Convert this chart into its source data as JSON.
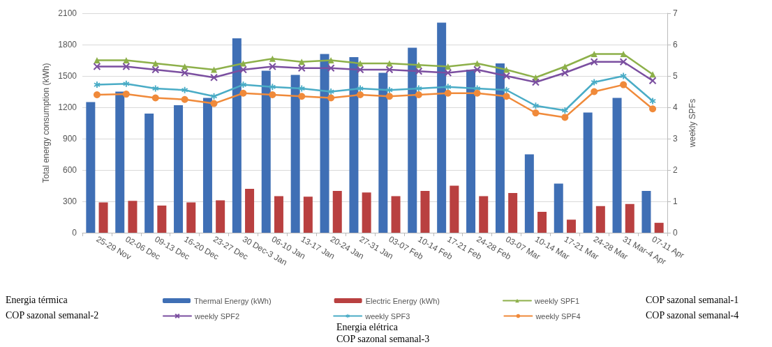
{
  "chart_data": {
    "type": "bar",
    "categories": [
      "25-29 Nov",
      "02-06 Dec",
      "09-13 Dec",
      "16-20 Dec",
      "23-27 Dec",
      "30 Dec-3 Jan",
      "06-10 Jan",
      "13-17 Jan",
      "20-24 Jan",
      "27-31 Jan",
      "03-07 Feb",
      "10-14 Feb",
      "17-21 Feb",
      "24-28 Feb",
      "03-07 Mar",
      "10-14 Mar",
      "17-21 Mar",
      "24-28 Mar",
      "31 Mar-4 Apr",
      "07-11 Apr"
    ],
    "series": [
      {
        "name": "Thermal Energy (kWh)",
        "color": "#3f6fb5",
        "values": [
          1250,
          1350,
          1140,
          1220,
          1290,
          1860,
          1550,
          1510,
          1710,
          1680,
          1530,
          1770,
          2010,
          1560,
          1620,
          750,
          470,
          1150,
          1290,
          400
        ]
      },
      {
        "name": "Electric Energy (kWh)",
        "color": "#b94040",
        "values": [
          290,
          305,
          260,
          290,
          310,
          420,
          350,
          345,
          400,
          385,
          350,
          400,
          450,
          350,
          380,
          200,
          125,
          255,
          275,
          95
        ]
      },
      {
        "name": "weekly SPF1",
        "type": "line",
        "axis": "y2",
        "marker": "triangle",
        "color": "#8db04a",
        "values": [
          5.5,
          5.5,
          5.4,
          5.3,
          5.2,
          5.4,
          5.55,
          5.45,
          5.5,
          5.4,
          5.4,
          5.35,
          5.3,
          5.4,
          5.2,
          4.95,
          5.3,
          5.7,
          5.7,
          5.05
        ]
      },
      {
        "name": "weekly SPF2",
        "type": "line",
        "axis": "y2",
        "marker": "cross",
        "color": "#7b4fa0",
        "values": [
          5.3,
          5.3,
          5.2,
          5.1,
          4.95,
          5.2,
          5.3,
          5.25,
          5.25,
          5.2,
          5.2,
          5.15,
          5.1,
          5.2,
          5.0,
          4.8,
          5.1,
          5.45,
          5.45,
          4.85
        ]
      },
      {
        "name": "weekly SPF3",
        "type": "line",
        "axis": "y2",
        "marker": "star",
        "color": "#4aacc6",
        "values": [
          4.72,
          4.75,
          4.6,
          4.55,
          4.35,
          4.72,
          4.65,
          4.6,
          4.5,
          4.6,
          4.55,
          4.6,
          4.65,
          4.6,
          4.55,
          4.05,
          3.9,
          4.8,
          5.0,
          4.2
        ]
      },
      {
        "name": "weekly SPF4",
        "type": "line",
        "axis": "y2",
        "marker": "circle",
        "color": "#f08a3a",
        "values": [
          4.4,
          4.42,
          4.3,
          4.25,
          4.12,
          4.45,
          4.4,
          4.35,
          4.3,
          4.4,
          4.35,
          4.4,
          4.45,
          4.45,
          4.35,
          3.82,
          3.68,
          4.5,
          4.72,
          3.95
        ]
      }
    ],
    "ylabel": "Total energy consumption (kWh)",
    "y2label": "weekly SPFs",
    "ylim": [
      0,
      2100
    ],
    "yticks": [
      0,
      300,
      600,
      900,
      1200,
      1500,
      1800,
      2100
    ],
    "y2lim": [
      0,
      7
    ],
    "y2ticks": [
      0,
      1,
      2,
      3,
      4,
      5,
      6,
      7
    ],
    "grid": "y",
    "legend": "bottom",
    "line_style": "solid",
    "annotations": [
      "Energia térmica",
      "COP sazonal semanal-2",
      "COP sazonal semanal-1",
      "COP sazonal semanal-4",
      "Energia elétrica",
      "COP sazonal semanal-3"
    ]
  }
}
